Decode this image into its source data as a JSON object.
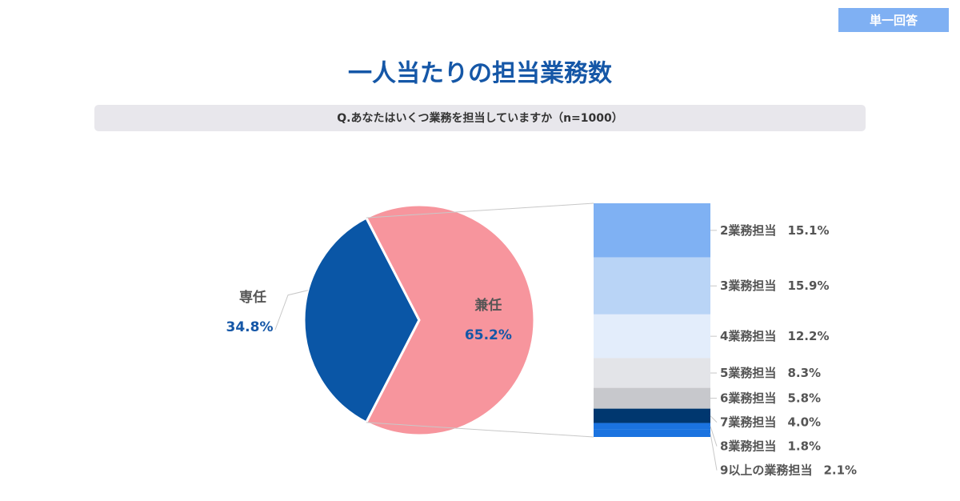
{
  "badge": "単一回答",
  "chart_data": {
    "type": "pie",
    "title": "一人当たりの担当業務数",
    "subtitle": "Q.あなたはいくつ業務を担当していますか（n=1000）",
    "categories": [
      "専任",
      "兼任"
    ],
    "values": [
      34.8,
      65.2
    ],
    "value_labels": [
      "34.8%",
      "65.2%"
    ],
    "colors": [
      "#0a56a6",
      "#f7959d"
    ],
    "breakdown": {
      "categories": [
        "2業務担当",
        "3業務担当",
        "4業務担当",
        "5業務担当",
        "6業務担当",
        "7業務担当",
        "8業務担当",
        "9以上の業務担当"
      ],
      "values": [
        15.1,
        15.9,
        12.2,
        8.3,
        5.8,
        4.0,
        1.8,
        2.1
      ],
      "value_labels": [
        "15.1%",
        "15.9%",
        "12.2%",
        "8.3%",
        "5.8%",
        "4.0%",
        "1.8%",
        "2.1%"
      ],
      "colors": [
        "#7fb1f3",
        "#b9d4f6",
        "#e3edfb",
        "#e3e4e8",
        "#c7c8cc",
        "#00376f",
        "#1b73e0",
        "#1b73e0"
      ]
    }
  }
}
